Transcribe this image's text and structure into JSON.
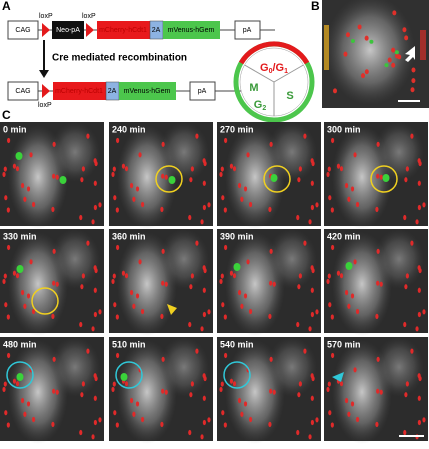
{
  "panel_labels": [
    "A",
    "B",
    "C"
  ],
  "construct": {
    "top": {
      "promoter": "CAG",
      "loxp_left": "loxP",
      "stop": "Neo-pA",
      "loxp_right": "loxP",
      "cdt": "mCherry-hCdt1",
      "link": "2A",
      "gem": "mVenus-hGem",
      "polya": "pA"
    },
    "arrow_label": "Cre mediated recombination",
    "bottom": {
      "promoter": "CAG",
      "loxp": "loxP",
      "cdt": "mCherry-hCdt1",
      "link": "2A",
      "gem": "mVenus-hGem",
      "polya": "pA"
    }
  },
  "cell_cycle": {
    "g1": [
      "G",
      "0",
      "/G",
      "1"
    ],
    "m": "M",
    "g2": [
      "G",
      "2"
    ],
    "s": "S"
  },
  "timelapse": {
    "frames": [
      "0 min",
      "240 min",
      "270 min",
      "300 min",
      "330 min",
      "360 min",
      "390 min",
      "420 min",
      "480 min",
      "510 min",
      "540 min",
      "570 min"
    ]
  }
}
